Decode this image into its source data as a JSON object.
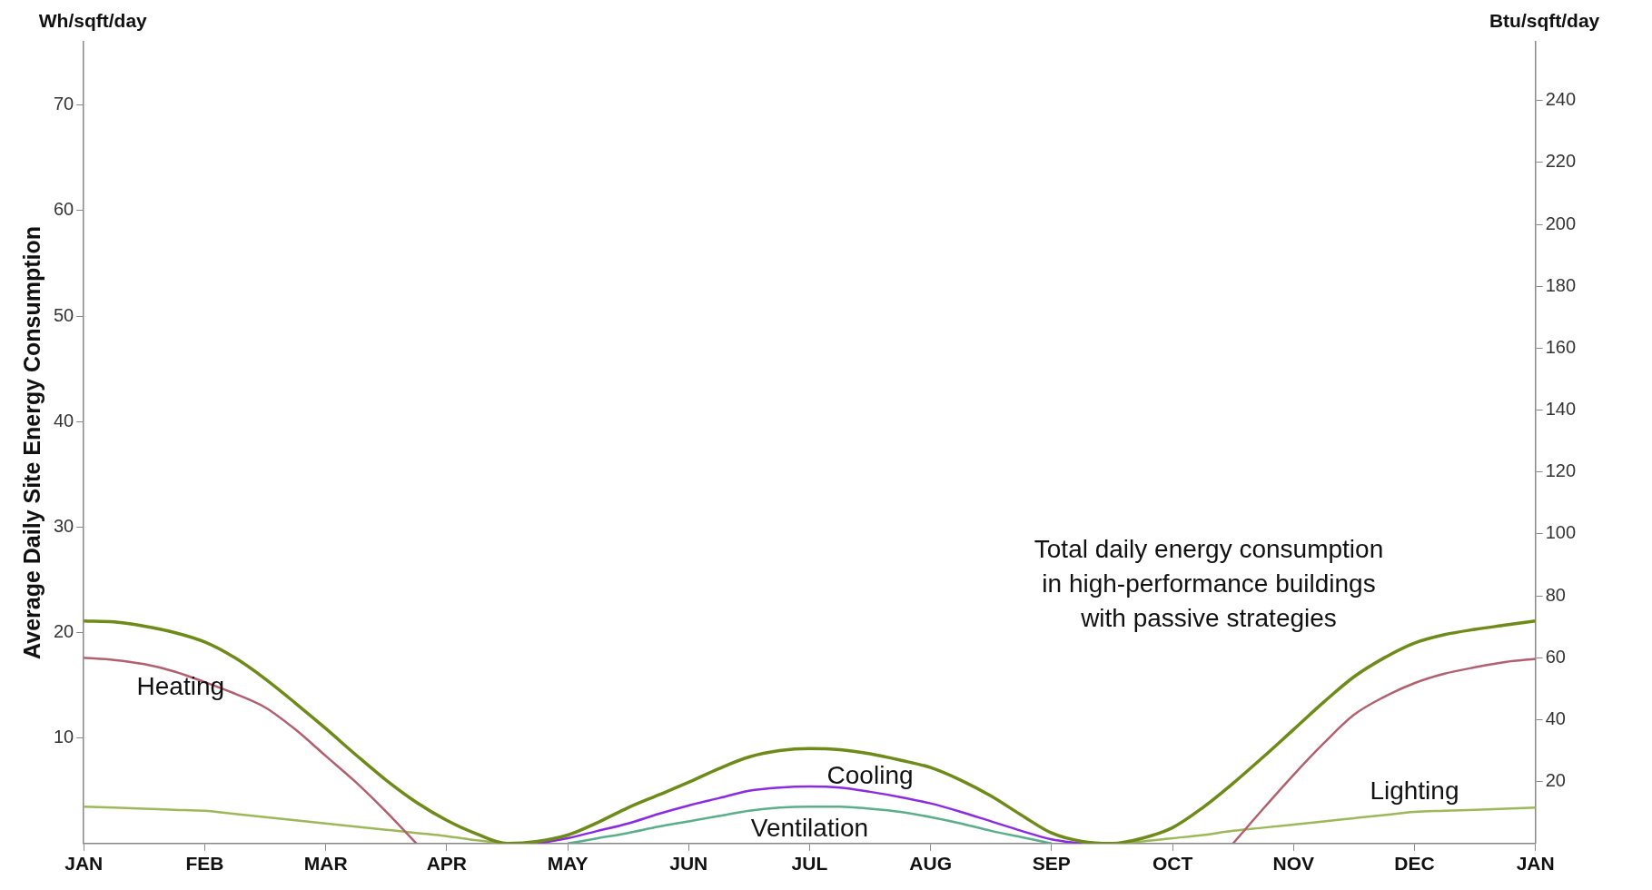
{
  "chart_data": {
    "type": "line",
    "ylabel": "Average Daily Site Energy Consumption",
    "y2label": "Btu/sqft/day",
    "annotations": [
      "Wh/sqft/day"
    ],
    "categories": [
      "JAN",
      null,
      null,
      null,
      "FEB",
      null,
      null,
      null,
      "MAR",
      null,
      null,
      null,
      "APR",
      null,
      null,
      null,
      "MAY",
      null,
      null,
      null,
      "JUN",
      null,
      null,
      null,
      "JUL",
      null,
      null,
      null,
      "AUG",
      null,
      null,
      null,
      "SEP",
      null,
      null,
      null,
      "OCT",
      null,
      null,
      null,
      "NOV",
      null,
      null,
      null,
      "DEC",
      null,
      null,
      null,
      "JAN"
    ],
    "ylim": [
      0,
      76
    ],
    "yticks": [
      10,
      20,
      30,
      40,
      50,
      60,
      70
    ],
    "y2lim": [
      0,
      259
    ],
    "y2ticks": [
      20,
      40,
      60,
      80,
      100,
      120,
      140,
      160,
      180,
      200,
      220,
      240
    ],
    "grid": false,
    "legend": false,
    "series": [
      {
        "name": "Total daily energy consumption in high-performance buildings with passive strategies",
        "color": "#6e8b1a",
        "values": [
          21.1,
          21.0,
          20.6,
          20.0,
          19.1,
          17.6,
          15.6,
          13.3,
          10.9,
          8.4,
          6.0,
          3.9,
          2.2,
          0.9,
          0,
          0.2,
          0.8,
          2.0,
          3.4,
          4.6,
          5.8,
          7.1,
          8.2,
          8.8,
          9.0,
          8.9,
          8.5,
          7.9,
          7.2,
          6.0,
          4.5,
          2.7,
          1.0,
          0.2,
          0,
          0.5,
          1.5,
          3.4,
          5.7,
          8.2,
          10.8,
          13.4,
          15.8,
          17.6,
          19.0,
          19.8,
          20.3,
          20.7,
          21.1
        ]
      },
      {
        "name": "Heating",
        "color": "#b0606e",
        "values": [
          17.6,
          17.4,
          17.0,
          16.3,
          15.3,
          14.2,
          12.9,
          10.8,
          8.3,
          5.8,
          3.0,
          0,
          null,
          null,
          null,
          null,
          null,
          null,
          null,
          null,
          null,
          null,
          null,
          null,
          null,
          null,
          null,
          null,
          null,
          null,
          null,
          null,
          null,
          null,
          null,
          null,
          null,
          null,
          0,
          3.3,
          6.5,
          9.5,
          12.2,
          13.9,
          15.2,
          16.1,
          16.7,
          17.2,
          17.5
        ]
      },
      {
        "name": "Lighting",
        "color": "#9cb85a",
        "values": [
          3.5,
          3.4,
          3.3,
          3.2,
          3.1,
          2.8,
          2.5,
          2.2,
          1.9,
          1.6,
          1.3,
          1.0,
          0.7,
          0.3,
          0,
          null,
          null,
          null,
          null,
          null,
          null,
          null,
          null,
          null,
          null,
          null,
          null,
          null,
          null,
          null,
          null,
          null,
          null,
          null,
          0,
          0.2,
          0.5,
          0.8,
          1.2,
          1.5,
          1.8,
          2.1,
          2.4,
          2.7,
          3.0,
          3.1,
          3.2,
          3.3,
          3.4
        ]
      },
      {
        "name": "Cooling",
        "color": "#8a2be2",
        "values": [
          null,
          null,
          null,
          null,
          null,
          null,
          null,
          null,
          null,
          null,
          null,
          null,
          null,
          null,
          null,
          0,
          0.5,
          1.2,
          1.9,
          2.8,
          3.6,
          4.3,
          5.0,
          5.3,
          5.4,
          5.3,
          4.9,
          4.4,
          3.8,
          3.0,
          2.1,
          1.2,
          0.4,
          0,
          null,
          null,
          null,
          null,
          null,
          null,
          null,
          null,
          null,
          null,
          null,
          null,
          null,
          null,
          null
        ]
      },
      {
        "name": "Ventilation",
        "color": "#5aae8a",
        "values": [
          null,
          null,
          null,
          null,
          null,
          null,
          null,
          null,
          null,
          null,
          null,
          null,
          null,
          null,
          null,
          null,
          0,
          0.5,
          1.0,
          1.6,
          2.1,
          2.6,
          3.1,
          3.4,
          3.5,
          3.5,
          3.3,
          3.0,
          2.5,
          1.9,
          1.2,
          0.6,
          0,
          null,
          null,
          null,
          null,
          null,
          null,
          null,
          null,
          null,
          null,
          null,
          null,
          null,
          null,
          null,
          null
        ]
      }
    ]
  }
}
